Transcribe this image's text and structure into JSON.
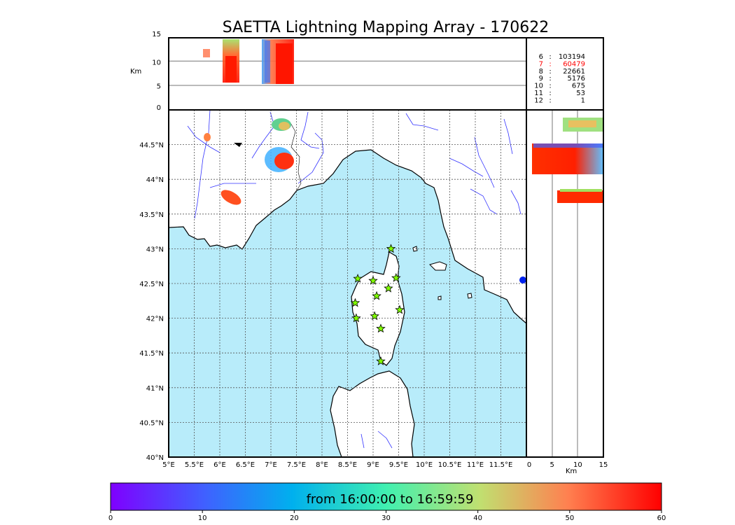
{
  "title": "SAETTA Lightning Mapping Array - 170622",
  "altitude_unit": "Km",
  "altitude_ticks": [
    "15",
    "10",
    "5",
    "0"
  ],
  "longitude_ticks": [
    "5°E",
    "5.5°E",
    "6°E",
    "6.5°E",
    "7°E",
    "7.5°E",
    "8°E",
    "8.5°E",
    "9°E",
    "9.5°E",
    "10°E",
    "10.5°E",
    "11°E",
    "11.5°E"
  ],
  "latitude_ticks": [
    "44.5°N",
    "44°N",
    "43.5°N",
    "43°N",
    "42.5°N",
    "42°N",
    "41.5°N",
    "41°N",
    "40.5°N",
    "40°N"
  ],
  "side_km_ticks": [
    "0",
    "5",
    "10",
    "15"
  ],
  "station_counts": [
    {
      "stations": "6",
      "sep": ":",
      "count": "103194",
      "color": "#000000"
    },
    {
      "stations": "7",
      "sep": ":",
      "count": "60479",
      "color": "#ff0000"
    },
    {
      "stations": "8",
      "sep": ":",
      "count": "22661",
      "color": "#000000"
    },
    {
      "stations": "9",
      "sep": ":",
      "count": "5176",
      "color": "#000000"
    },
    {
      "stations": "10",
      "sep": ":",
      "count": "675",
      "color": "#000000"
    },
    {
      "stations": "11",
      "sep": ":",
      "count": "53",
      "color": "#000000"
    },
    {
      "stations": "12",
      "sep": ":",
      "count": "1",
      "color": "#000000"
    }
  ],
  "colorbar": {
    "label": "from 16:00:00 to 16:59:59",
    "ticks": [
      "0",
      "10",
      "20",
      "30",
      "40",
      "50",
      "60"
    ]
  },
  "colors": {
    "sea": "#b8ecfa",
    "land": "#ffffff",
    "rivers": "#3333ff",
    "station_marker": "#80ff00"
  },
  "map_extent": {
    "lon": [
      5,
      12
    ],
    "lat": [
      40,
      45
    ],
    "alt_km": [
      0,
      15
    ]
  },
  "stations": [
    {
      "lon": 9.35,
      "lat": 43.0
    },
    {
      "lon": 8.7,
      "lat": 42.57
    },
    {
      "lon": 9.0,
      "lat": 42.54
    },
    {
      "lon": 9.45,
      "lat": 42.58
    },
    {
      "lon": 9.3,
      "lat": 42.43
    },
    {
      "lon": 9.07,
      "lat": 42.32
    },
    {
      "lon": 8.65,
      "lat": 42.22
    },
    {
      "lon": 9.52,
      "lat": 42.12
    },
    {
      "lon": 9.03,
      "lat": 42.03
    },
    {
      "lon": 8.67,
      "lat": 42.0
    },
    {
      "lon": 9.15,
      "lat": 41.85
    },
    {
      "lon": 9.15,
      "lat": 41.38
    }
  ]
}
